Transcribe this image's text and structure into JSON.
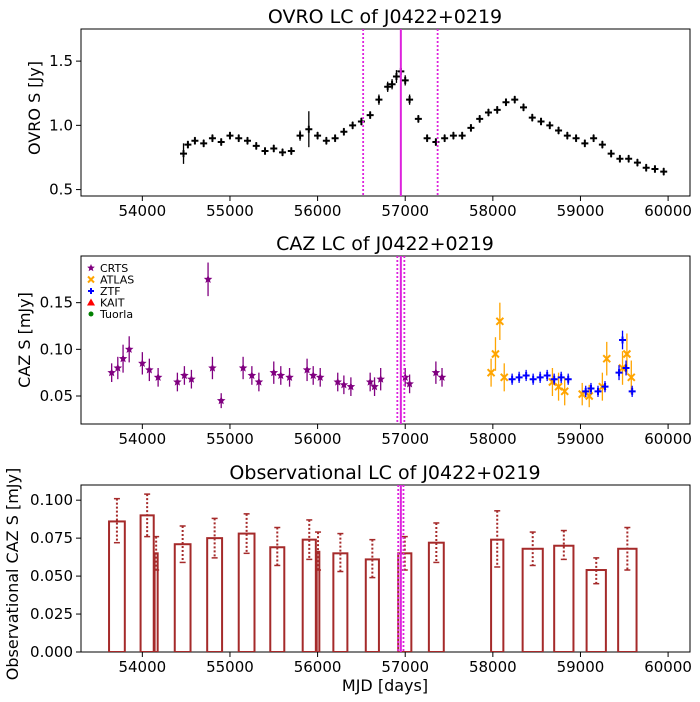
{
  "chart_data": [
    {
      "type": "scatter",
      "title": "OVRO LC of J0422+0219",
      "xlabel": "",
      "ylabel": "OVRO S [Jy]",
      "xlim": [
        53300,
        60250
      ],
      "ylim": [
        0.45,
        1.75
      ],
      "xticks": [
        54000,
        55000,
        56000,
        57000,
        58000,
        59000,
        60000
      ],
      "xtick_labels": [
        "54000",
        "55000",
        "56000",
        "57000",
        "58000",
        "59000",
        "60000"
      ],
      "yticks": [
        0.5,
        1.0,
        1.5
      ],
      "ytick_labels": [
        "0.5",
        "1.0",
        "1.5"
      ],
      "markers": {
        "solid_line_mjd": 56950,
        "dotted_lines_mjd": [
          56520,
          57370
        ],
        "color": "#dd22dd"
      },
      "series": [
        {
          "name": "OVRO",
          "color": "#000000",
          "marker": "+",
          "x": [
            54470,
            54520,
            54600,
            54700,
            54800,
            54900,
            55000,
            55100,
            55200,
            55300,
            55400,
            55500,
            55600,
            55700,
            55800,
            55900,
            56000,
            56100,
            56200,
            56300,
            56400,
            56500,
            56600,
            56700,
            56800,
            56850,
            56900,
            56950,
            57000,
            57050,
            57150,
            57250,
            57350,
            57450,
            57550,
            57650,
            57750,
            57850,
            57950,
            58050,
            58150,
            58250,
            58350,
            58450,
            58550,
            58650,
            58750,
            58850,
            58950,
            59050,
            59150,
            59250,
            59350,
            59450,
            59550,
            59650,
            59750,
            59850,
            59950
          ],
          "y": [
            0.78,
            0.85,
            0.88,
            0.86,
            0.9,
            0.87,
            0.92,
            0.9,
            0.88,
            0.84,
            0.8,
            0.82,
            0.79,
            0.8,
            0.92,
            0.97,
            0.92,
            0.88,
            0.9,
            0.95,
            1.0,
            1.03,
            1.08,
            1.2,
            1.3,
            1.32,
            1.38,
            1.42,
            1.35,
            1.2,
            1.05,
            0.9,
            0.87,
            0.9,
            0.92,
            0.92,
            0.98,
            1.05,
            1.1,
            1.12,
            1.18,
            1.2,
            1.14,
            1.06,
            1.03,
            1.0,
            0.96,
            0.92,
            0.9,
            0.86,
            0.9,
            0.85,
            0.78,
            0.74,
            0.74,
            0.71,
            0.67,
            0.66,
            0.64
          ],
          "yerr": [
            0.08,
            0.03,
            0.03,
            0.03,
            0.03,
            0.03,
            0.03,
            0.03,
            0.03,
            0.03,
            0.03,
            0.03,
            0.03,
            0.03,
            0.04,
            0.14,
            0.03,
            0.03,
            0.03,
            0.03,
            0.03,
            0.03,
            0.03,
            0.04,
            0.04,
            0.04,
            0.05,
            0.06,
            0.04,
            0.04,
            0.03,
            0.03,
            0.03,
            0.03,
            0.03,
            0.03,
            0.03,
            0.03,
            0.03,
            0.03,
            0.03,
            0.03,
            0.03,
            0.03,
            0.03,
            0.03,
            0.03,
            0.03,
            0.03,
            0.03,
            0.03,
            0.03,
            0.03,
            0.03,
            0.03,
            0.03,
            0.03,
            0.03,
            0.03
          ]
        }
      ]
    },
    {
      "type": "scatter",
      "title": "CAZ LC of J0422+0219",
      "xlabel": "",
      "ylabel": "CAZ S [mJy]",
      "xlim": [
        53300,
        60250
      ],
      "ylim": [
        0.02,
        0.2
      ],
      "xticks": [
        54000,
        55000,
        56000,
        57000,
        58000,
        59000,
        60000
      ],
      "xtick_labels": [
        "54000",
        "55000",
        "56000",
        "57000",
        "58000",
        "59000",
        "60000"
      ],
      "yticks": [
        0.05,
        0.1,
        0.15
      ],
      "ytick_labels": [
        "0.05",
        "0.10",
        "0.15"
      ],
      "markers": {
        "solid_line_mjd": 56950,
        "dotted_lines_mjd": [
          56910,
          56990
        ],
        "color": "#dd22dd"
      },
      "legend": {
        "placement": "top-left",
        "entries": [
          "CRTS",
          "ATLAS",
          "ZTF",
          "KAIT",
          "Tuorla"
        ]
      },
      "series": [
        {
          "name": "CRTS",
          "color": "#800080",
          "marker": "star",
          "x": [
            53650,
            53720,
            53780,
            53850,
            54000,
            54080,
            54180,
            54400,
            54480,
            54560,
            54750,
            54800,
            54900,
            55150,
            55250,
            55330,
            55500,
            55580,
            55680,
            55880,
            55950,
            56030,
            56230,
            56300,
            56380,
            56600,
            56650,
            56720,
            57000,
            57050,
            57350,
            57420
          ],
          "y": [
            0.075,
            0.08,
            0.09,
            0.1,
            0.085,
            0.078,
            0.07,
            0.065,
            0.072,
            0.068,
            0.175,
            0.08,
            0.045,
            0.08,
            0.072,
            0.065,
            0.075,
            0.072,
            0.07,
            0.078,
            0.072,
            0.07,
            0.065,
            0.062,
            0.06,
            0.065,
            0.06,
            0.068,
            0.07,
            0.063,
            0.075,
            0.07
          ],
          "yerr": [
            0.01,
            0.012,
            0.015,
            0.014,
            0.012,
            0.012,
            0.01,
            0.01,
            0.01,
            0.01,
            0.018,
            0.012,
            0.008,
            0.012,
            0.01,
            0.01,
            0.012,
            0.01,
            0.01,
            0.012,
            0.01,
            0.01,
            0.01,
            0.01,
            0.01,
            0.01,
            0.01,
            0.012,
            0.01,
            0.01,
            0.012,
            0.01
          ]
        },
        {
          "name": "ATLAS",
          "color": "#ffa500",
          "marker": "x",
          "x": [
            57980,
            58030,
            58080,
            58130,
            58680,
            58750,
            58820,
            59020,
            59100,
            59250,
            59300,
            59480,
            59530,
            59580
          ],
          "y": [
            0.075,
            0.095,
            0.13,
            0.07,
            0.065,
            0.06,
            0.055,
            0.052,
            0.05,
            0.06,
            0.09,
            0.08,
            0.095,
            0.07
          ],
          "yerr": [
            0.015,
            0.018,
            0.02,
            0.015,
            0.015,
            0.015,
            0.015,
            0.012,
            0.012,
            0.015,
            0.018,
            0.018,
            0.022,
            0.018
          ]
        },
        {
          "name": "ZTF",
          "color": "#0000ff",
          "marker": "+",
          "x": [
            58220,
            58300,
            58380,
            58460,
            58540,
            58620,
            58700,
            58780,
            58860,
            59060,
            59120,
            59200,
            59280,
            59440,
            59480,
            59520,
            59590
          ],
          "y": [
            0.068,
            0.07,
            0.072,
            0.068,
            0.07,
            0.072,
            0.068,
            0.07,
            0.068,
            0.055,
            0.058,
            0.055,
            0.06,
            0.075,
            0.11,
            0.08,
            0.055
          ],
          "yerr": [
            0.006,
            0.006,
            0.006,
            0.006,
            0.006,
            0.006,
            0.006,
            0.006,
            0.006,
            0.006,
            0.006,
            0.006,
            0.006,
            0.008,
            0.01,
            0.008,
            0.006
          ]
        },
        {
          "name": "KAIT",
          "color": "#ff0000",
          "marker": "triangle",
          "x": [],
          "y": [],
          "yerr": []
        },
        {
          "name": "Tuorla",
          "color": "#008000",
          "marker": "circle",
          "x": [],
          "y": [],
          "yerr": []
        }
      ]
    },
    {
      "type": "bar",
      "title": "Observational LC of J0422+0219",
      "xlabel": "MJD [days]",
      "ylabel": "Observational CAZ S [mJy]",
      "xlim": [
        53300,
        60250
      ],
      "ylim": [
        0.0,
        0.11
      ],
      "xticks": [
        54000,
        55000,
        56000,
        57000,
        58000,
        59000,
        60000
      ],
      "xtick_labels": [
        "54000",
        "55000",
        "56000",
        "57000",
        "58000",
        "59000",
        "60000"
      ],
      "yticks": [
        0.0,
        0.025,
        0.05,
        0.075,
        0.1
      ],
      "ytick_labels": [
        "0.000",
        "0.025",
        "0.050",
        "0.075",
        "0.100"
      ],
      "markers": {
        "solid_line_mjd": 56950,
        "dotted_lines_mjd": [
          56920,
          56980
        ],
        "color": "#dd22dd"
      },
      "bar_color": "#a52a2a",
      "bars": [
        {
          "x0": 53620,
          "x1": 53800,
          "value": 0.086,
          "err_hi": 0.101,
          "err_lo": 0.072
        },
        {
          "x0": 53980,
          "x1": 54130,
          "value": 0.09,
          "err_hi": 0.104,
          "err_lo": 0.076
        },
        {
          "x0": 54140,
          "x1": 54175,
          "value": 0.065,
          "err_hi": 0.076,
          "err_lo": 0.054
        },
        {
          "x0": 54370,
          "x1": 54550,
          "value": 0.071,
          "err_hi": 0.083,
          "err_lo": 0.059
        },
        {
          "x0": 54740,
          "x1": 54910,
          "value": 0.075,
          "err_hi": 0.088,
          "err_lo": 0.062
        },
        {
          "x0": 55100,
          "x1": 55280,
          "value": 0.078,
          "err_hi": 0.091,
          "err_lo": 0.065
        },
        {
          "x0": 55460,
          "x1": 55620,
          "value": 0.069,
          "err_hi": 0.082,
          "err_lo": 0.057
        },
        {
          "x0": 55830,
          "x1": 55980,
          "value": 0.074,
          "err_hi": 0.087,
          "err_lo": 0.061
        },
        {
          "x0": 55990,
          "x1": 56020,
          "value": 0.066,
          "err_hi": 0.079,
          "err_lo": 0.054
        },
        {
          "x0": 56180,
          "x1": 56340,
          "value": 0.065,
          "err_hi": 0.078,
          "err_lo": 0.053
        },
        {
          "x0": 56550,
          "x1": 56700,
          "value": 0.061,
          "err_hi": 0.074,
          "err_lo": 0.049
        },
        {
          "x0": 56920,
          "x1": 57070,
          "value": 0.065,
          "err_hi": 0.076,
          "err_lo": 0.054
        },
        {
          "x0": 57270,
          "x1": 57440,
          "value": 0.072,
          "err_hi": 0.085,
          "err_lo": 0.059
        },
        {
          "x0": 57980,
          "x1": 58120,
          "value": 0.074,
          "err_hi": 0.093,
          "err_lo": 0.056
        },
        {
          "x0": 58340,
          "x1": 58570,
          "value": 0.068,
          "err_hi": 0.079,
          "err_lo": 0.057
        },
        {
          "x0": 58700,
          "x1": 58920,
          "value": 0.07,
          "err_hi": 0.08,
          "err_lo": 0.061
        },
        {
          "x0": 59070,
          "x1": 59290,
          "value": 0.054,
          "err_hi": 0.062,
          "err_lo": 0.045
        },
        {
          "x0": 59430,
          "x1": 59640,
          "value": 0.068,
          "err_hi": 0.082,
          "err_lo": 0.054
        }
      ]
    }
  ]
}
